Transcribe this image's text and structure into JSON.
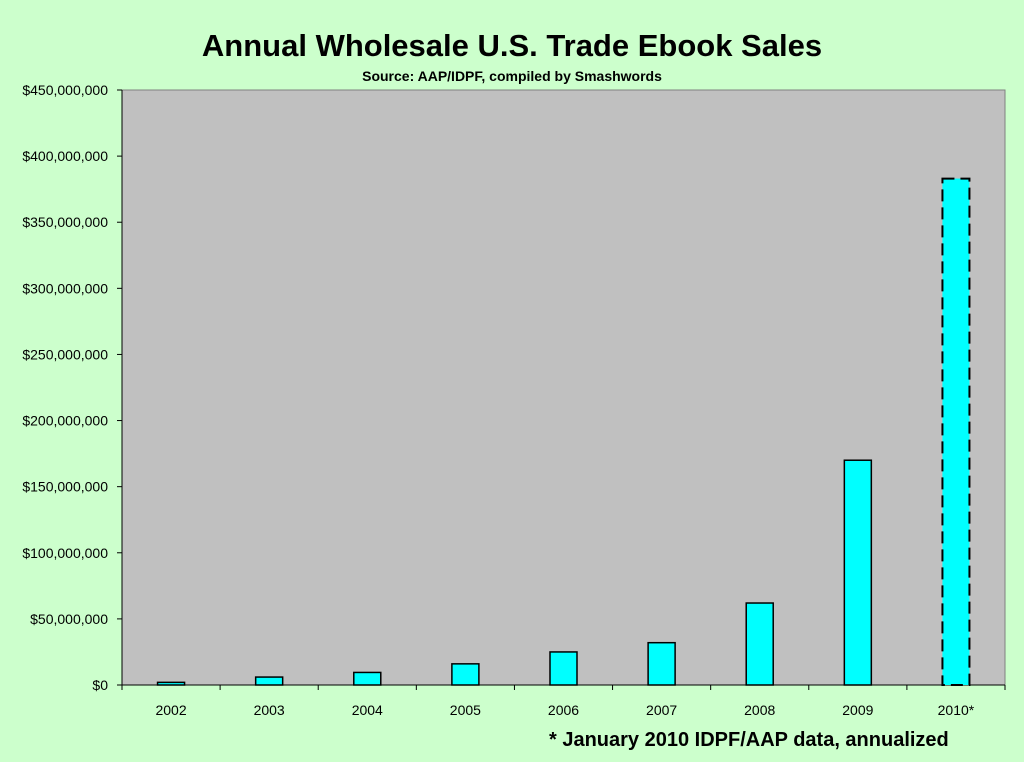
{
  "chart_data": {
    "type": "bar",
    "title": "Annual Wholesale U.S. Trade Ebook Sales",
    "subtitle": "Source:  AAP/IDPF, compiled by Smashwords",
    "categories": [
      "2002",
      "2003",
      "2004",
      "2005",
      "2006",
      "2007",
      "2008",
      "2009",
      "2010*"
    ],
    "values": [
      2000000,
      6000000,
      9500000,
      16000000,
      25000000,
      32000000,
      62000000,
      170000000,
      383000000
    ],
    "projected": [
      false,
      false,
      false,
      false,
      false,
      false,
      false,
      false,
      true
    ],
    "ylim": [
      0,
      450000000
    ],
    "yticks": [
      0,
      50000000,
      100000000,
      150000000,
      200000000,
      250000000,
      300000000,
      350000000,
      400000000,
      450000000
    ],
    "ytick_labels": [
      "$0",
      "$50,000,000",
      "$100,000,000",
      "$150,000,000",
      "$200,000,000",
      "$250,000,000",
      "$300,000,000",
      "$350,000,000",
      "$400,000,000",
      "$450,000,000"
    ],
    "xlabel": "",
    "ylabel": "",
    "grid": false,
    "legend": "none",
    "bar_color": "#00ffff",
    "plot_background": "#c0c0c0",
    "page_background": "#ccffcc",
    "footnote": "* January 2010 IDPF/AAP data, annualized"
  }
}
